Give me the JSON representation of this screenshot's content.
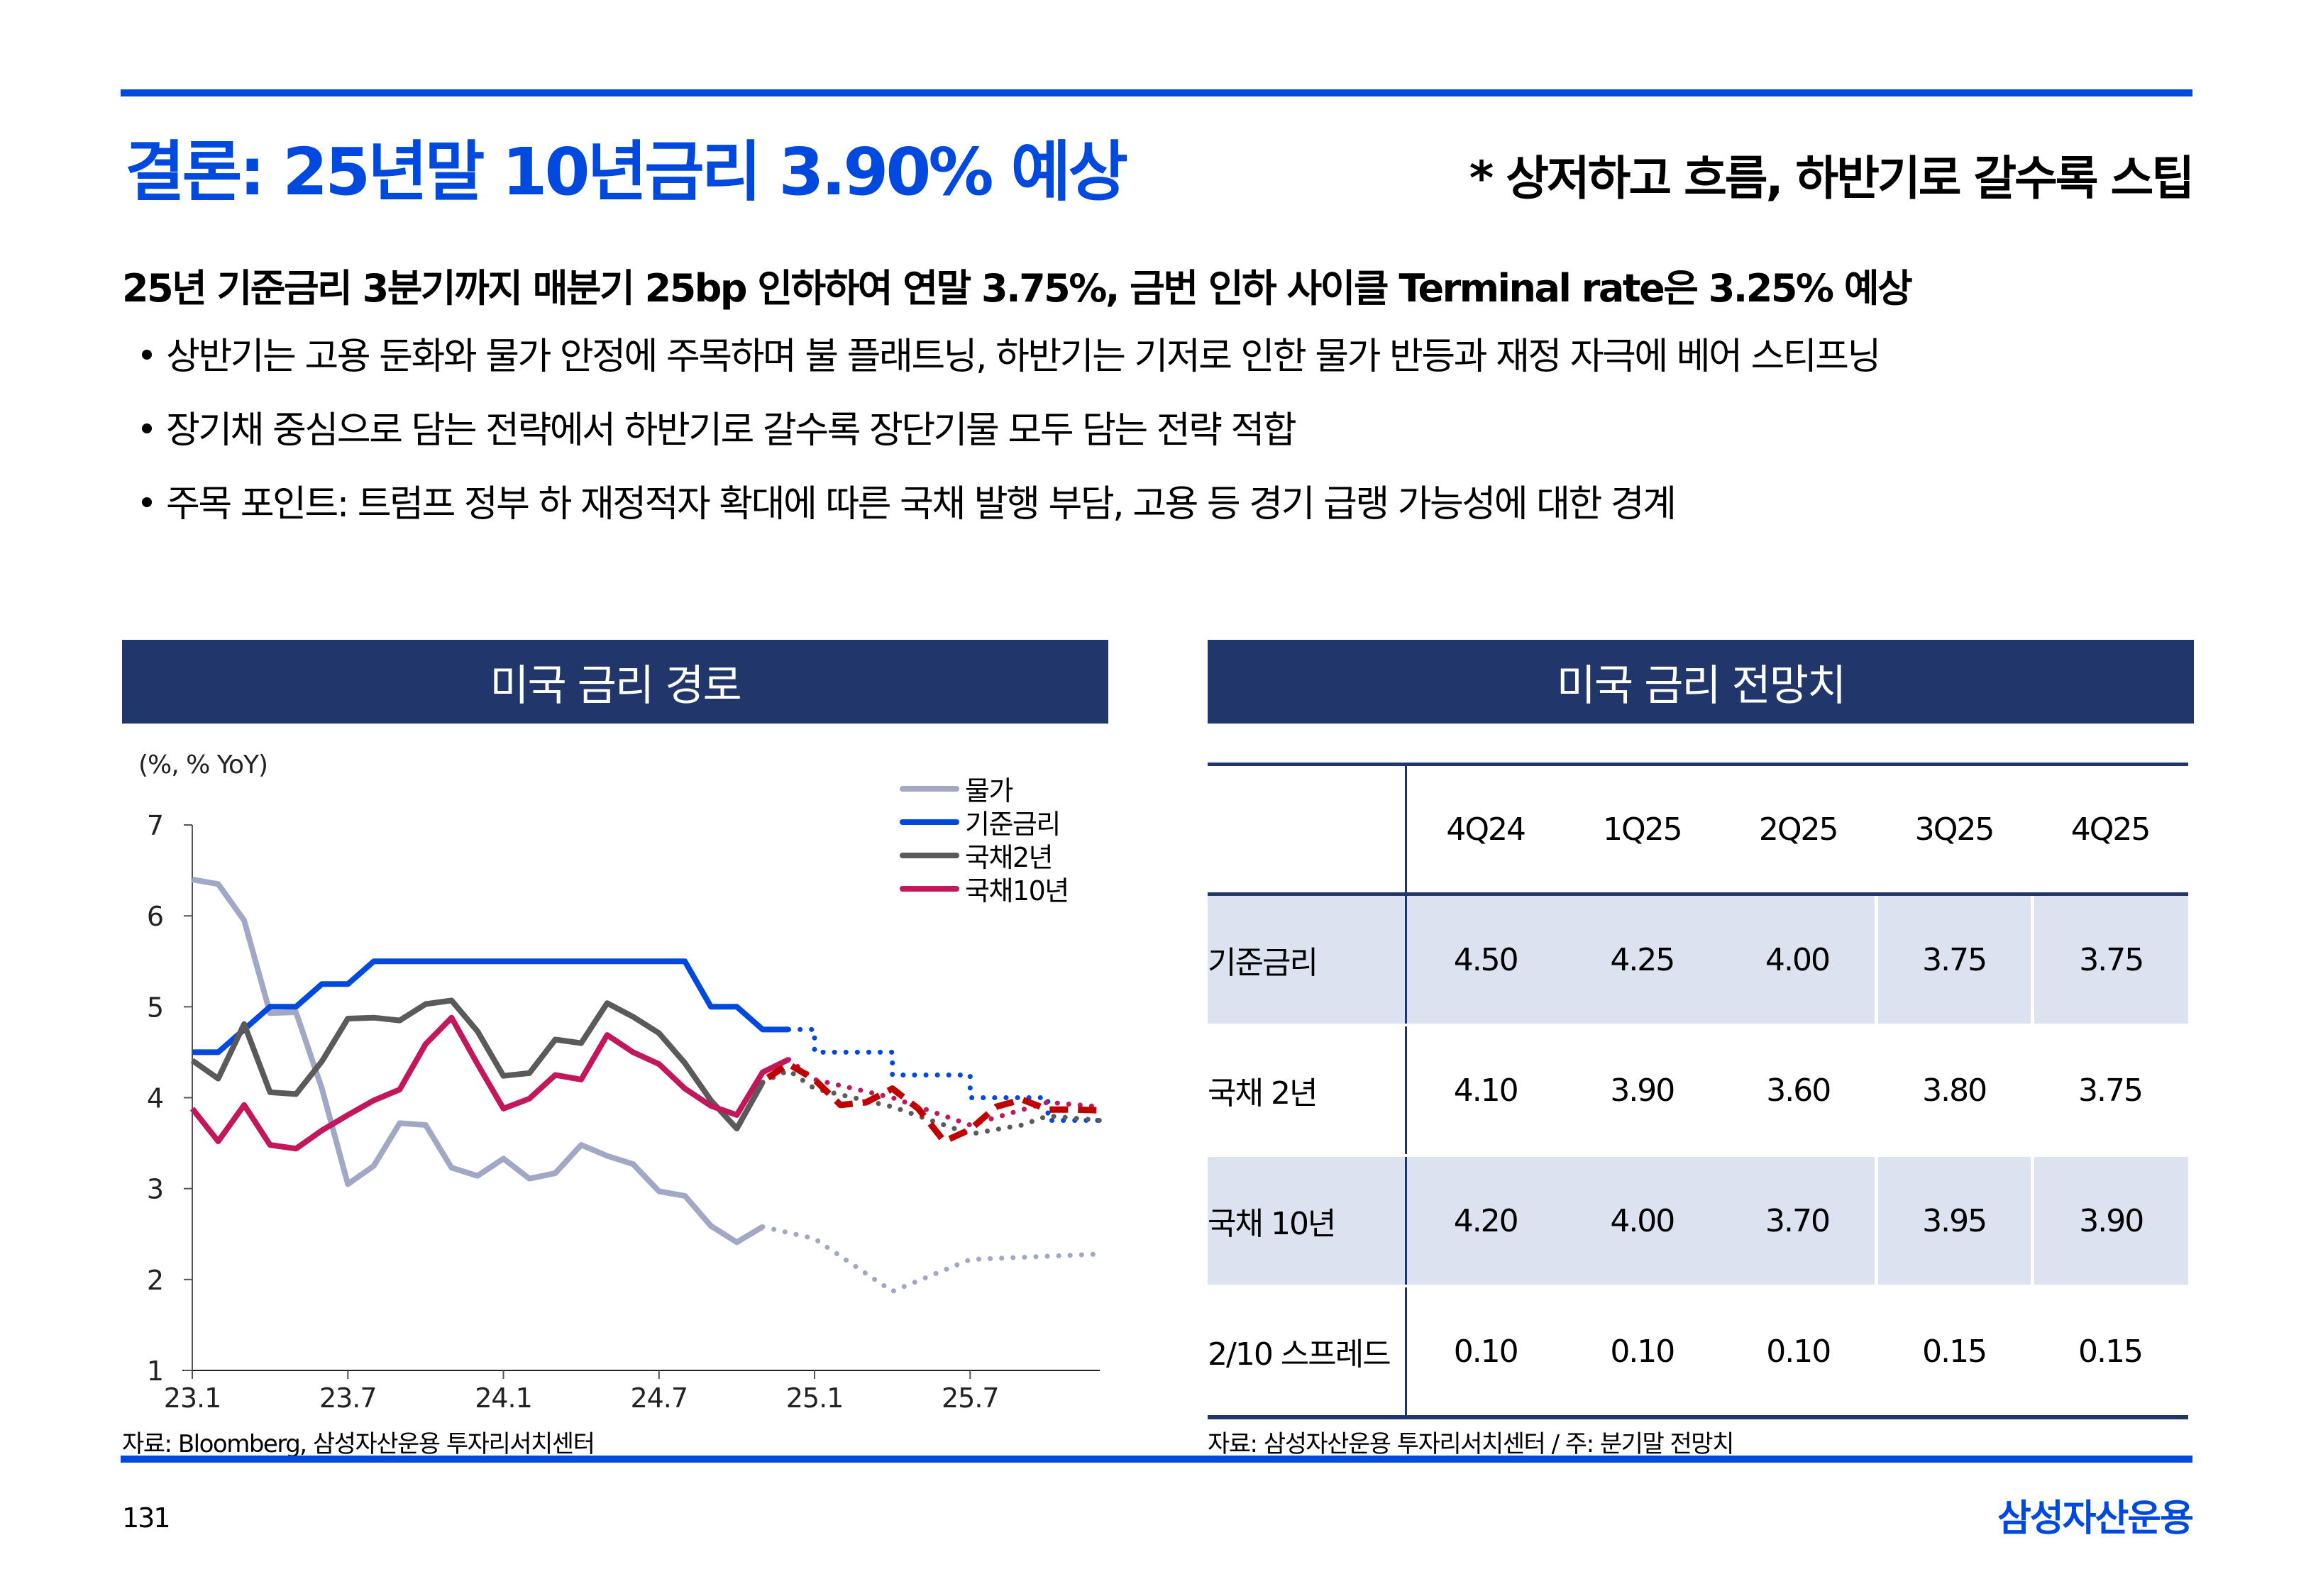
{
  "header": {
    "title": "결론: 25년말 10년금리 3.90% 예상",
    "subnote": "* 상저하고 흐름, 하반기로 갈수록 스팁"
  },
  "summary": {
    "lead": "25년 기준금리 3분기까지 매분기 25bp 인하하여 연말 3.75%, 금번 인하 사이클 Terminal rate은 3.25% 예상",
    "bullets": [
      "상반기는 고용 둔화와 물가 안정에 주목하며 불 플래트닝, 하반기는 기저로 인한 물가 반등과 재정 자극에 베어 스티프닝",
      "장기채 중심으로 담는 전략에서 하반기로 갈수록 장단기물 모두 담는 전략 적합",
      "주목 포인트: 트럼프 정부 하 재정적자 확대에 따른 국채 발행 부담, 고용 등 경기 급랭 가능성에 대한 경계"
    ]
  },
  "left_panel": {
    "title": "미국 금리 경로",
    "unit": "(%, % YoY)",
    "source": "자료: Bloomberg, 삼성자산운용 투자리서치센터"
  },
  "right_panel": {
    "title": "미국 금리 전망치",
    "source": "자료: 삼성자산운용 투자리서치센터 / 주: 분기말 전망치",
    "columns": [
      "4Q24",
      "1Q25",
      "2Q25",
      "3Q25",
      "4Q25"
    ],
    "rows": [
      {
        "label": "기준금리",
        "values": [
          "4.50",
          "4.25",
          "4.00",
          "3.75",
          "3.75"
        ]
      },
      {
        "label": "국채 2년",
        "values": [
          "4.10",
          "3.90",
          "3.60",
          "3.80",
          "3.75"
        ]
      },
      {
        "label": "국채 10년",
        "values": [
          "4.20",
          "4.00",
          "3.70",
          "3.95",
          "3.90"
        ]
      },
      {
        "label": "2/10 스프레드",
        "values": [
          "0.10",
          "0.10",
          "0.10",
          "0.15",
          "0.15"
        ]
      }
    ]
  },
  "footer": {
    "page": "131",
    "brand": "삼성자산운용"
  },
  "colors": {
    "accent": "#0049df",
    "panel_header": "#21376c",
    "table_shade": "#dce2ef",
    "cpi": "#a0a8c6",
    "fed": "#0049df",
    "ust2": "#5a5a5a",
    "ust10": "#c2185b",
    "ust10_forecast": "#c00000"
  },
  "chart_data": {
    "type": "line",
    "title": "미국 금리 경로",
    "ylabel": "(%, % YoY)",
    "ylim": [
      1,
      7
    ],
    "yticks": [
      "1",
      "2",
      "3",
      "4",
      "5",
      "6",
      "7"
    ],
    "xticks": [
      "23.1",
      "23.7",
      "24.1",
      "24.7",
      "25.1",
      "25.7"
    ],
    "x_unit": "months since 23.1",
    "x_tick_positions": [
      0,
      6,
      12,
      18,
      24,
      30
    ],
    "xlim": [
      0,
      35
    ],
    "legend_position": "top-right",
    "series": [
      {
        "name": "물가",
        "color_key": "cpi",
        "style": "solid",
        "x": [
          0,
          1,
          2,
          3,
          4,
          5,
          6,
          7,
          8,
          9,
          10,
          11,
          12,
          13,
          14,
          15,
          16,
          17,
          18,
          19,
          20,
          21,
          22
        ],
        "values": [
          6.4,
          6.35,
          5.95,
          4.93,
          4.94,
          4.1,
          3.05,
          3.25,
          3.72,
          3.7,
          3.23,
          3.14,
          3.33,
          3.11,
          3.17,
          3.48,
          3.36,
          3.27,
          2.97,
          2.92,
          2.59,
          2.41,
          2.58
        ]
      },
      {
        "name": "물가 전망",
        "color_key": "cpi",
        "style": "dotted",
        "legend": false,
        "x": [
          22,
          24,
          27,
          30,
          35
        ],
        "values": [
          2.58,
          2.45,
          1.87,
          2.22,
          2.28
        ]
      },
      {
        "name": "기준금리",
        "color_key": "fed",
        "style": "solid",
        "x": [
          0,
          1,
          2,
          3,
          4,
          5,
          6,
          7,
          8,
          9,
          10,
          11,
          12,
          13,
          14,
          15,
          16,
          17,
          18,
          19,
          20,
          21,
          22,
          23
        ],
        "values": [
          4.5,
          4.5,
          4.75,
          5.0,
          5.0,
          5.25,
          5.25,
          5.5,
          5.5,
          5.5,
          5.5,
          5.5,
          5.5,
          5.5,
          5.5,
          5.5,
          5.5,
          5.5,
          5.5,
          5.5,
          5.0,
          5.0,
          4.75,
          4.75
        ]
      },
      {
        "name": "기준금리 전망",
        "color_key": "fed",
        "style": "dotted-step",
        "legend": false,
        "x": [
          23,
          24,
          27,
          30,
          33,
          35
        ],
        "values": [
          4.75,
          4.5,
          4.25,
          4.0,
          3.75,
          3.75
        ]
      },
      {
        "name": "국채2년",
        "color_key": "ust2",
        "style": "solid",
        "x": [
          0,
          1,
          2,
          3,
          4,
          5,
          6,
          7,
          8,
          9,
          10,
          11,
          12,
          13,
          14,
          15,
          16,
          17,
          18,
          19,
          20,
          21,
          22
        ],
        "values": [
          4.41,
          4.21,
          4.81,
          4.06,
          4.04,
          4.4,
          4.87,
          4.88,
          4.85,
          5.03,
          5.07,
          4.73,
          4.24,
          4.27,
          4.64,
          4.6,
          5.04,
          4.89,
          4.71,
          4.38,
          3.97,
          3.66,
          4.17
        ]
      },
      {
        "name": "국채2년 전망",
        "color_key": "ust2",
        "style": "dotted",
        "legend": false,
        "x": [
          22,
          23,
          24,
          27,
          30,
          32,
          33,
          35
        ],
        "values": [
          4.17,
          4.3,
          4.1,
          3.9,
          3.6,
          3.7,
          3.8,
          3.75
        ]
      },
      {
        "name": "국채10년",
        "color_key": "ust10",
        "style": "solid",
        "x": [
          0,
          1,
          2,
          3,
          4,
          5,
          6,
          7,
          8,
          9,
          10,
          11,
          12,
          13,
          14,
          15,
          16,
          17,
          18,
          19,
          20,
          21,
          22,
          23
        ],
        "values": [
          3.88,
          3.52,
          3.92,
          3.48,
          3.44,
          3.64,
          3.81,
          3.97,
          4.09,
          4.59,
          4.88,
          4.37,
          3.88,
          3.99,
          4.25,
          4.2,
          4.69,
          4.5,
          4.37,
          4.1,
          3.91,
          3.81,
          4.28,
          4.42
        ]
      },
      {
        "name": "국채10년 전망",
        "color_key": "ust10",
        "style": "dotted",
        "legend": false,
        "x": [
          23,
          24,
          27,
          30,
          33,
          35
        ],
        "values": [
          4.42,
          4.2,
          4.0,
          3.7,
          3.95,
          3.9
        ]
      },
      {
        "name": "국채10년 경로",
        "color_key": "ust10_forecast",
        "style": "dashed",
        "legend": false,
        "x": [
          22.2,
          23,
          24,
          25,
          26,
          27,
          28,
          29,
          30,
          31,
          32,
          33,
          34,
          35
        ],
        "values": [
          4.22,
          4.37,
          4.2,
          3.92,
          3.95,
          4.1,
          3.88,
          3.52,
          3.65,
          3.9,
          3.98,
          3.87,
          3.87,
          3.86
        ]
      }
    ]
  }
}
